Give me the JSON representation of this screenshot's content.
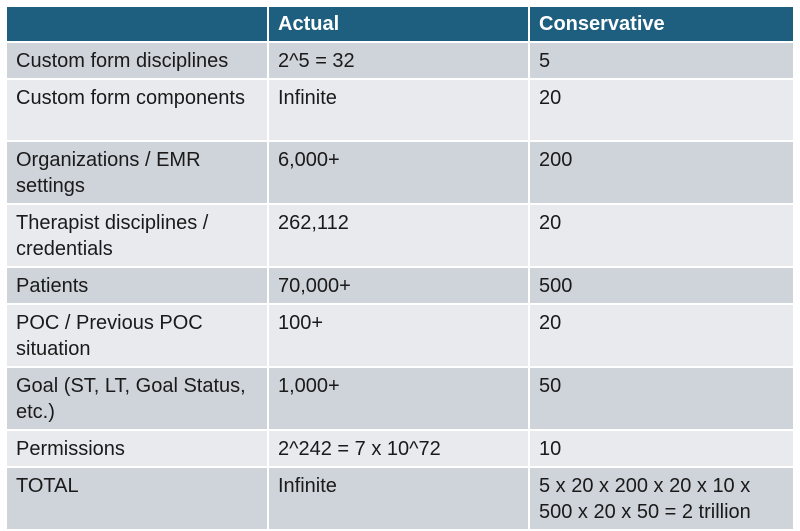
{
  "table": {
    "headers": [
      "",
      "Actual",
      "Conservative"
    ],
    "rows": [
      [
        "Custom form disciplines",
        "2^5 = 32",
        "5"
      ],
      [
        "Custom form components",
        "Infinite",
        "20"
      ],
      [
        "Organizations / EMR settings",
        "6,000+",
        "200"
      ],
      [
        "Therapist disciplines / credentials",
        "262,112",
        "20"
      ],
      [
        "Patients",
        "70,000+",
        "500"
      ],
      [
        "POC / Previous POC situation",
        "100+",
        "20"
      ],
      [
        "Goal (ST, LT, Goal Status, etc.)",
        "1,000+",
        "50"
      ],
      [
        "Permissions",
        "2^242 = 7 x 10^72",
        "10"
      ],
      [
        "TOTAL",
        "Infinite",
        "5 x 20 x 200 x 20 x 10 x 500 x 20 x 50 = 2 trillion"
      ]
    ]
  },
  "colors": {
    "header_bg": "#1e5f7f",
    "row_dark": "#cfd3da",
    "row_light": "#e8eaee"
  }
}
